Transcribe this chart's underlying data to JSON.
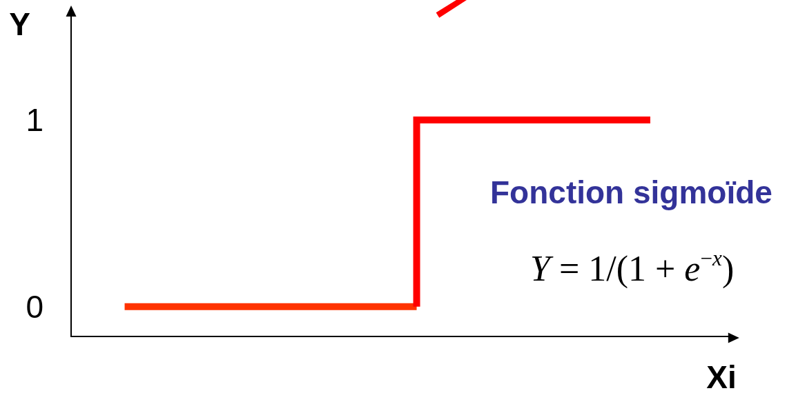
{
  "chart_data": {
    "type": "step",
    "xlabel": "Xi",
    "ylabel": "Y",
    "tick_labels": "y",
    "categories": [
      null,
      null,
      null,
      null,
      null,
      null,
      null,
      null,
      null,
      null,
      null,
      null,
      null,
      null,
      null,
      null,
      null,
      null,
      null,
      null,
      null,
      null,
      null,
      null,
      null,
      null,
      null,
      null,
      null,
      null,
      null,
      null,
      null,
      null,
      null,
      null,
      null,
      null,
      null,
      null,
      null,
      null,
      null,
      null,
      null,
      null,
      null,
      null,
      null,
      null,
      null,
      null,
      null,
      null,
      null,
      null,
      null,
      null,
      null,
      null,
      null,
      null,
      null,
      null,
      null,
      null,
      null,
      null
    ],
    "ylim": [
      -0.16,
      1.58
    ],
    "yticks": [
      0,
      1
    ],
    "annotations": [
      "Fonction sigmoïde",
      "Y = 1/(1 + e$^{−x}$)"
    ],
    "series": [
      {
        "color": "#ff3300",
        "values": [
          null,
          null,
          null,
          null,
          null,
          0,
          0,
          0,
          0,
          0,
          0,
          0,
          0,
          0,
          0,
          0,
          0,
          0,
          0,
          0,
          0,
          0,
          0,
          0,
          0,
          0,
          0,
          0,
          0,
          0,
          0,
          0,
          0,
          0,
          0,
          0,
          null,
          null,
          null,
          null,
          null,
          null,
          null,
          null,
          null,
          null,
          null,
          null,
          null,
          null,
          null,
          null,
          null,
          null,
          null,
          null,
          null,
          null,
          null,
          null,
          null,
          null,
          null,
          null,
          null,
          null,
          null,
          null
        ]
      },
      {
        "color": "#ff0000",
        "values": [
          null,
          null,
          null,
          null,
          null,
          null,
          null,
          null,
          null,
          null,
          null,
          null,
          null,
          null,
          null,
          null,
          null,
          null,
          null,
          null,
          null,
          null,
          null,
          null,
          null,
          null,
          null,
          null,
          null,
          null,
          null,
          null,
          null,
          null,
          null,
          0,
          1,
          1,
          1,
          1,
          1,
          1,
          1,
          1,
          1,
          1,
          1,
          1,
          1,
          1,
          1,
          1,
          1,
          1,
          1,
          1,
          1,
          1,
          1,
          1,
          null,
          null,
          null,
          null,
          null,
          null,
          null,
          null
        ]
      }
    ]
  }
}
